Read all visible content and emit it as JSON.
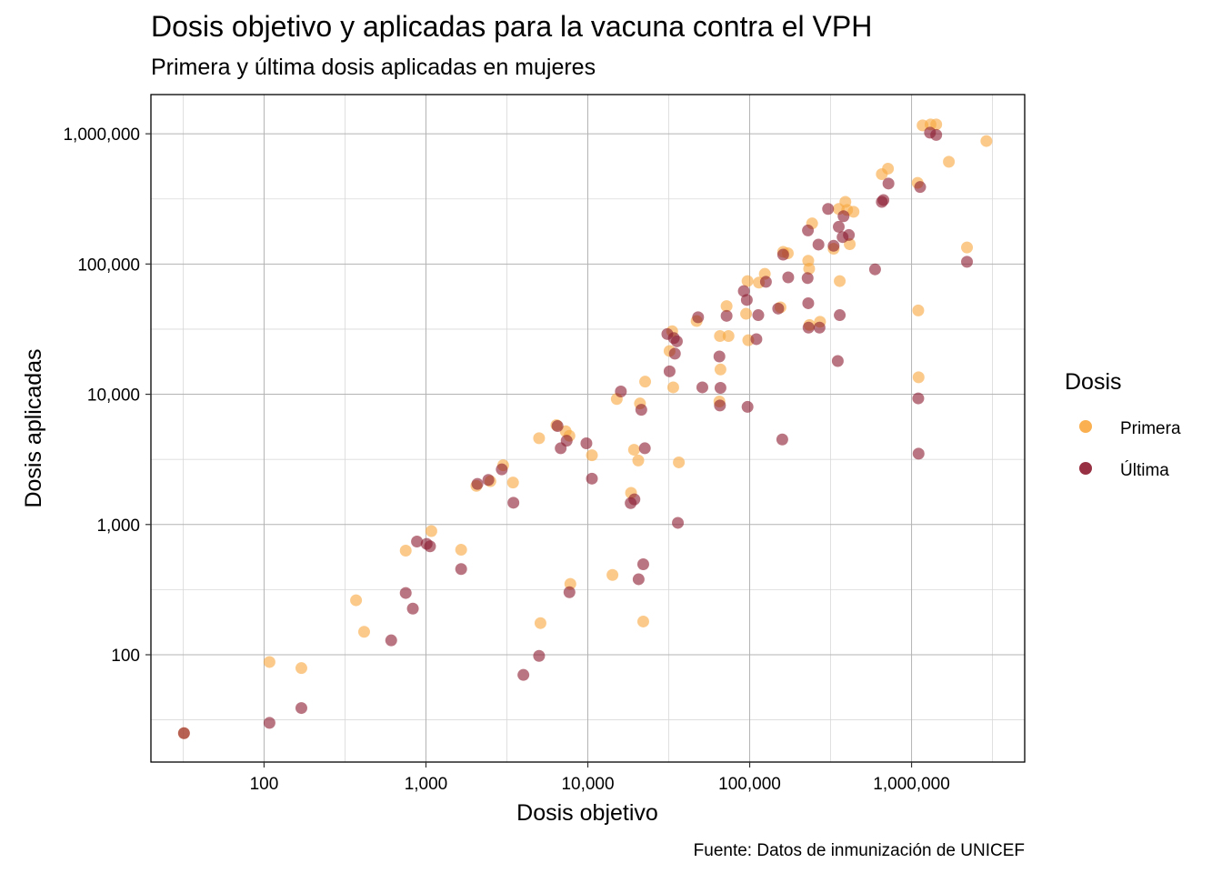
{
  "chart_data": {
    "type": "scatter",
    "title": "Dosis objetivo y aplicadas para la vacuna contra el VPH",
    "subtitle": "Primera y última dosis aplicadas en mujeres",
    "caption": "Fuente: Datos de inmunización de UNICEF",
    "xlabel": "Dosis objetivo",
    "ylabel": "Dosis aplicadas",
    "x_scale": "log10",
    "y_scale": "log10",
    "xlim": [
      20,
      5000000
    ],
    "ylim": [
      15,
      2000000
    ],
    "x_ticks": [
      100,
      1000,
      10000,
      100000,
      1000000
    ],
    "x_tick_labels": [
      "100",
      "1,000",
      "10,000",
      "100,000",
      "1,000,000"
    ],
    "y_ticks": [
      100,
      1000,
      10000,
      100000,
      1000000
    ],
    "y_tick_labels": [
      "100",
      "1,000",
      "10,000",
      "100,000",
      "1,000,000"
    ],
    "grid": true,
    "legend": {
      "title": "Dosis",
      "position": "right"
    },
    "series": [
      {
        "name": "Primera",
        "color": "#F9A73E",
        "points": [
          [
            32,
            25
          ],
          [
            108,
            88
          ],
          [
            170,
            79
          ],
          [
            370,
            262
          ],
          [
            415,
            150
          ],
          [
            750,
            630
          ],
          [
            1080,
            890
          ],
          [
            1650,
            640
          ],
          [
            2050,
            1980
          ],
          [
            2500,
            2150
          ],
          [
            3000,
            2850
          ],
          [
            3450,
            2100
          ],
          [
            5000,
            4600
          ],
          [
            5100,
            175
          ],
          [
            6400,
            5800
          ],
          [
            7300,
            5200
          ],
          [
            7700,
            4800
          ],
          [
            7800,
            350
          ],
          [
            10600,
            3400
          ],
          [
            14200,
            410
          ],
          [
            15100,
            9200
          ],
          [
            18500,
            1750
          ],
          [
            19300,
            3750
          ],
          [
            20500,
            3100
          ],
          [
            21000,
            8500
          ],
          [
            22000,
            180
          ],
          [
            22600,
            12500
          ],
          [
            32000,
            21500
          ],
          [
            33200,
            30500
          ],
          [
            33700,
            11300
          ],
          [
            36500,
            3000
          ],
          [
            47000,
            36500
          ],
          [
            65000,
            8800
          ],
          [
            65500,
            28000
          ],
          [
            66000,
            15500
          ],
          [
            72000,
            47500
          ],
          [
            74000,
            28000
          ],
          [
            95000,
            41500
          ],
          [
            97000,
            74000
          ],
          [
            98000,
            26000
          ],
          [
            114000,
            72000
          ],
          [
            124000,
            84000
          ],
          [
            155000,
            46500
          ],
          [
            161000,
            124000
          ],
          [
            172000,
            121000
          ],
          [
            230000,
            106000
          ],
          [
            233000,
            92000
          ],
          [
            234000,
            34000
          ],
          [
            243000,
            205000
          ],
          [
            272000,
            36000
          ],
          [
            330000,
            131000
          ],
          [
            355000,
            265000
          ],
          [
            360000,
            74000
          ],
          [
            390000,
            300000
          ],
          [
            400000,
            260000
          ],
          [
            415000,
            142000
          ],
          [
            438000,
            252000
          ],
          [
            655000,
            490000
          ],
          [
            715000,
            540000
          ],
          [
            1090000,
            420000
          ],
          [
            1100000,
            44000
          ],
          [
            1105000,
            13500
          ],
          [
            1170000,
            1160000
          ],
          [
            1310000,
            1180000
          ],
          [
            1420000,
            1180000
          ],
          [
            1700000,
            610000
          ],
          [
            2200000,
            134000
          ],
          [
            2900000,
            880000
          ]
        ]
      },
      {
        "name": "Última",
        "color": "#8B1A2E",
        "points": [
          [
            32,
            25
          ],
          [
            108,
            30
          ],
          [
            170,
            39
          ],
          [
            610,
            129
          ],
          [
            750,
            298
          ],
          [
            830,
            226
          ],
          [
            880,
            740
          ],
          [
            1010,
            710
          ],
          [
            1060,
            680
          ],
          [
            1650,
            455
          ],
          [
            2080,
            2050
          ],
          [
            2430,
            2200
          ],
          [
            2940,
            2650
          ],
          [
            3470,
            1470
          ],
          [
            4000,
            70
          ],
          [
            5000,
            98
          ],
          [
            6500,
            5700
          ],
          [
            6800,
            3850
          ],
          [
            7400,
            4400
          ],
          [
            7700,
            302
          ],
          [
            9800,
            4200
          ],
          [
            10600,
            2250
          ],
          [
            16000,
            10500
          ],
          [
            18400,
            1460
          ],
          [
            19400,
            1560
          ],
          [
            20600,
            380
          ],
          [
            21400,
            7600
          ],
          [
            22000,
            495
          ],
          [
            22500,
            3850
          ],
          [
            31000,
            29000
          ],
          [
            32000,
            15000
          ],
          [
            34000,
            27000
          ],
          [
            34500,
            20500
          ],
          [
            35500,
            25500
          ],
          [
            36000,
            1030
          ],
          [
            48000,
            39000
          ],
          [
            51000,
            11300
          ],
          [
            65000,
            19500
          ],
          [
            65500,
            8200
          ],
          [
            66000,
            11200
          ],
          [
            72000,
            40000
          ],
          [
            92000,
            62000
          ],
          [
            96000,
            53000
          ],
          [
            97000,
            8000
          ],
          [
            110000,
            26500
          ],
          [
            113000,
            40500
          ],
          [
            126000,
            73000
          ],
          [
            150000,
            45500
          ],
          [
            159000,
            4500
          ],
          [
            161000,
            118000
          ],
          [
            173000,
            79000
          ],
          [
            228000,
            78000
          ],
          [
            229000,
            181000
          ],
          [
            230000,
            50000
          ],
          [
            231000,
            32500
          ],
          [
            266000,
            141000
          ],
          [
            270000,
            32500
          ],
          [
            305000,
            265000
          ],
          [
            330000,
            138000
          ],
          [
            350000,
            18000
          ],
          [
            355000,
            193000
          ],
          [
            360000,
            40500
          ],
          [
            375000,
            161000
          ],
          [
            380000,
            233000
          ],
          [
            410000,
            167000
          ],
          [
            595000,
            91000
          ],
          [
            655000,
            300000
          ],
          [
            670000,
            310000
          ],
          [
            720000,
            415000
          ],
          [
            1100000,
            9300
          ],
          [
            1105000,
            3500
          ],
          [
            1130000,
            390000
          ],
          [
            1300000,
            1020000
          ],
          [
            1420000,
            980000
          ],
          [
            2200000,
            104000
          ]
        ]
      }
    ]
  }
}
